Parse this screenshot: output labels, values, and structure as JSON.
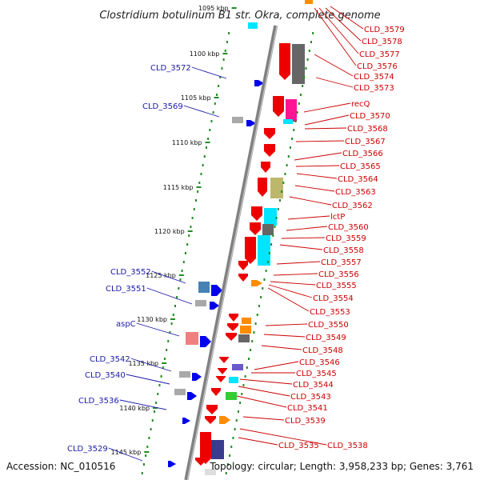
{
  "title": "Clostridium botulinum B1 str. Okra, complete genome",
  "footer": {
    "accession": "Accession: NC_010516",
    "topology": "Topology: circular; Length: 3,958,233 bp; Genes: 3,761"
  },
  "colors": {
    "backbone": "#808080",
    "tick": "#228b22",
    "left_label": "#1a1aa8",
    "right_label": "#cc0000",
    "gene_red": "#ee0000",
    "gene_blue": "#0000ee",
    "gene_cyan": "#00e5ff",
    "gene_grey": "#666666",
    "gene_magenta": "#ff1493",
    "gene_orange": "#ff8c00",
    "gene_khaki": "#bdb76b",
    "gene_steel": "#4682b4",
    "gene_salmon": "#f08080",
    "gene_green": "#32cd32",
    "gene_purple": "#6a5acd",
    "gene_navy": "#3b3b8f"
  },
  "kbp_marks": [
    "1095 kbp",
    "1100 kbp",
    "1105 kbp",
    "1110 kbp",
    "1115 kbp",
    "1120 kbp",
    "1125 kbp",
    "1130 kbp",
    "1135 kbp",
    "1140 kbp",
    "1145 kbp"
  ],
  "left_labels": [
    "CLD_3572",
    "CLD_3569",
    "CLD_3552",
    "CLD_3551",
    "aspC",
    "CLD_3542",
    "CLD_3540",
    "CLD_3536",
    "CLD_3529"
  ],
  "right_labels": [
    "CLD_3579",
    "CLD_3578",
    "CLD_3577",
    "CLD_3576",
    "CLD_3574",
    "CLD_3573",
    "recQ",
    "CLD_3570",
    "CLD_3568",
    "CLD_3567",
    "CLD_3566",
    "CLD_3565",
    "CLD_3564",
    "CLD_3563",
    "CLD_3562",
    "lctP",
    "CLD_3560",
    "CLD_3559",
    "CLD_3558",
    "CLD_3557",
    "CLD_3556",
    "CLD_3555",
    "CLD_3554",
    "CLD_3553",
    "CLD_3550",
    "CLD_3549",
    "CLD_3548",
    "CLD_3546",
    "CLD_3545",
    "CLD_3544",
    "CLD_3543",
    "CLD_3541",
    "CLD_3539",
    "CLD_3538",
    "CLD_3535"
  ]
}
